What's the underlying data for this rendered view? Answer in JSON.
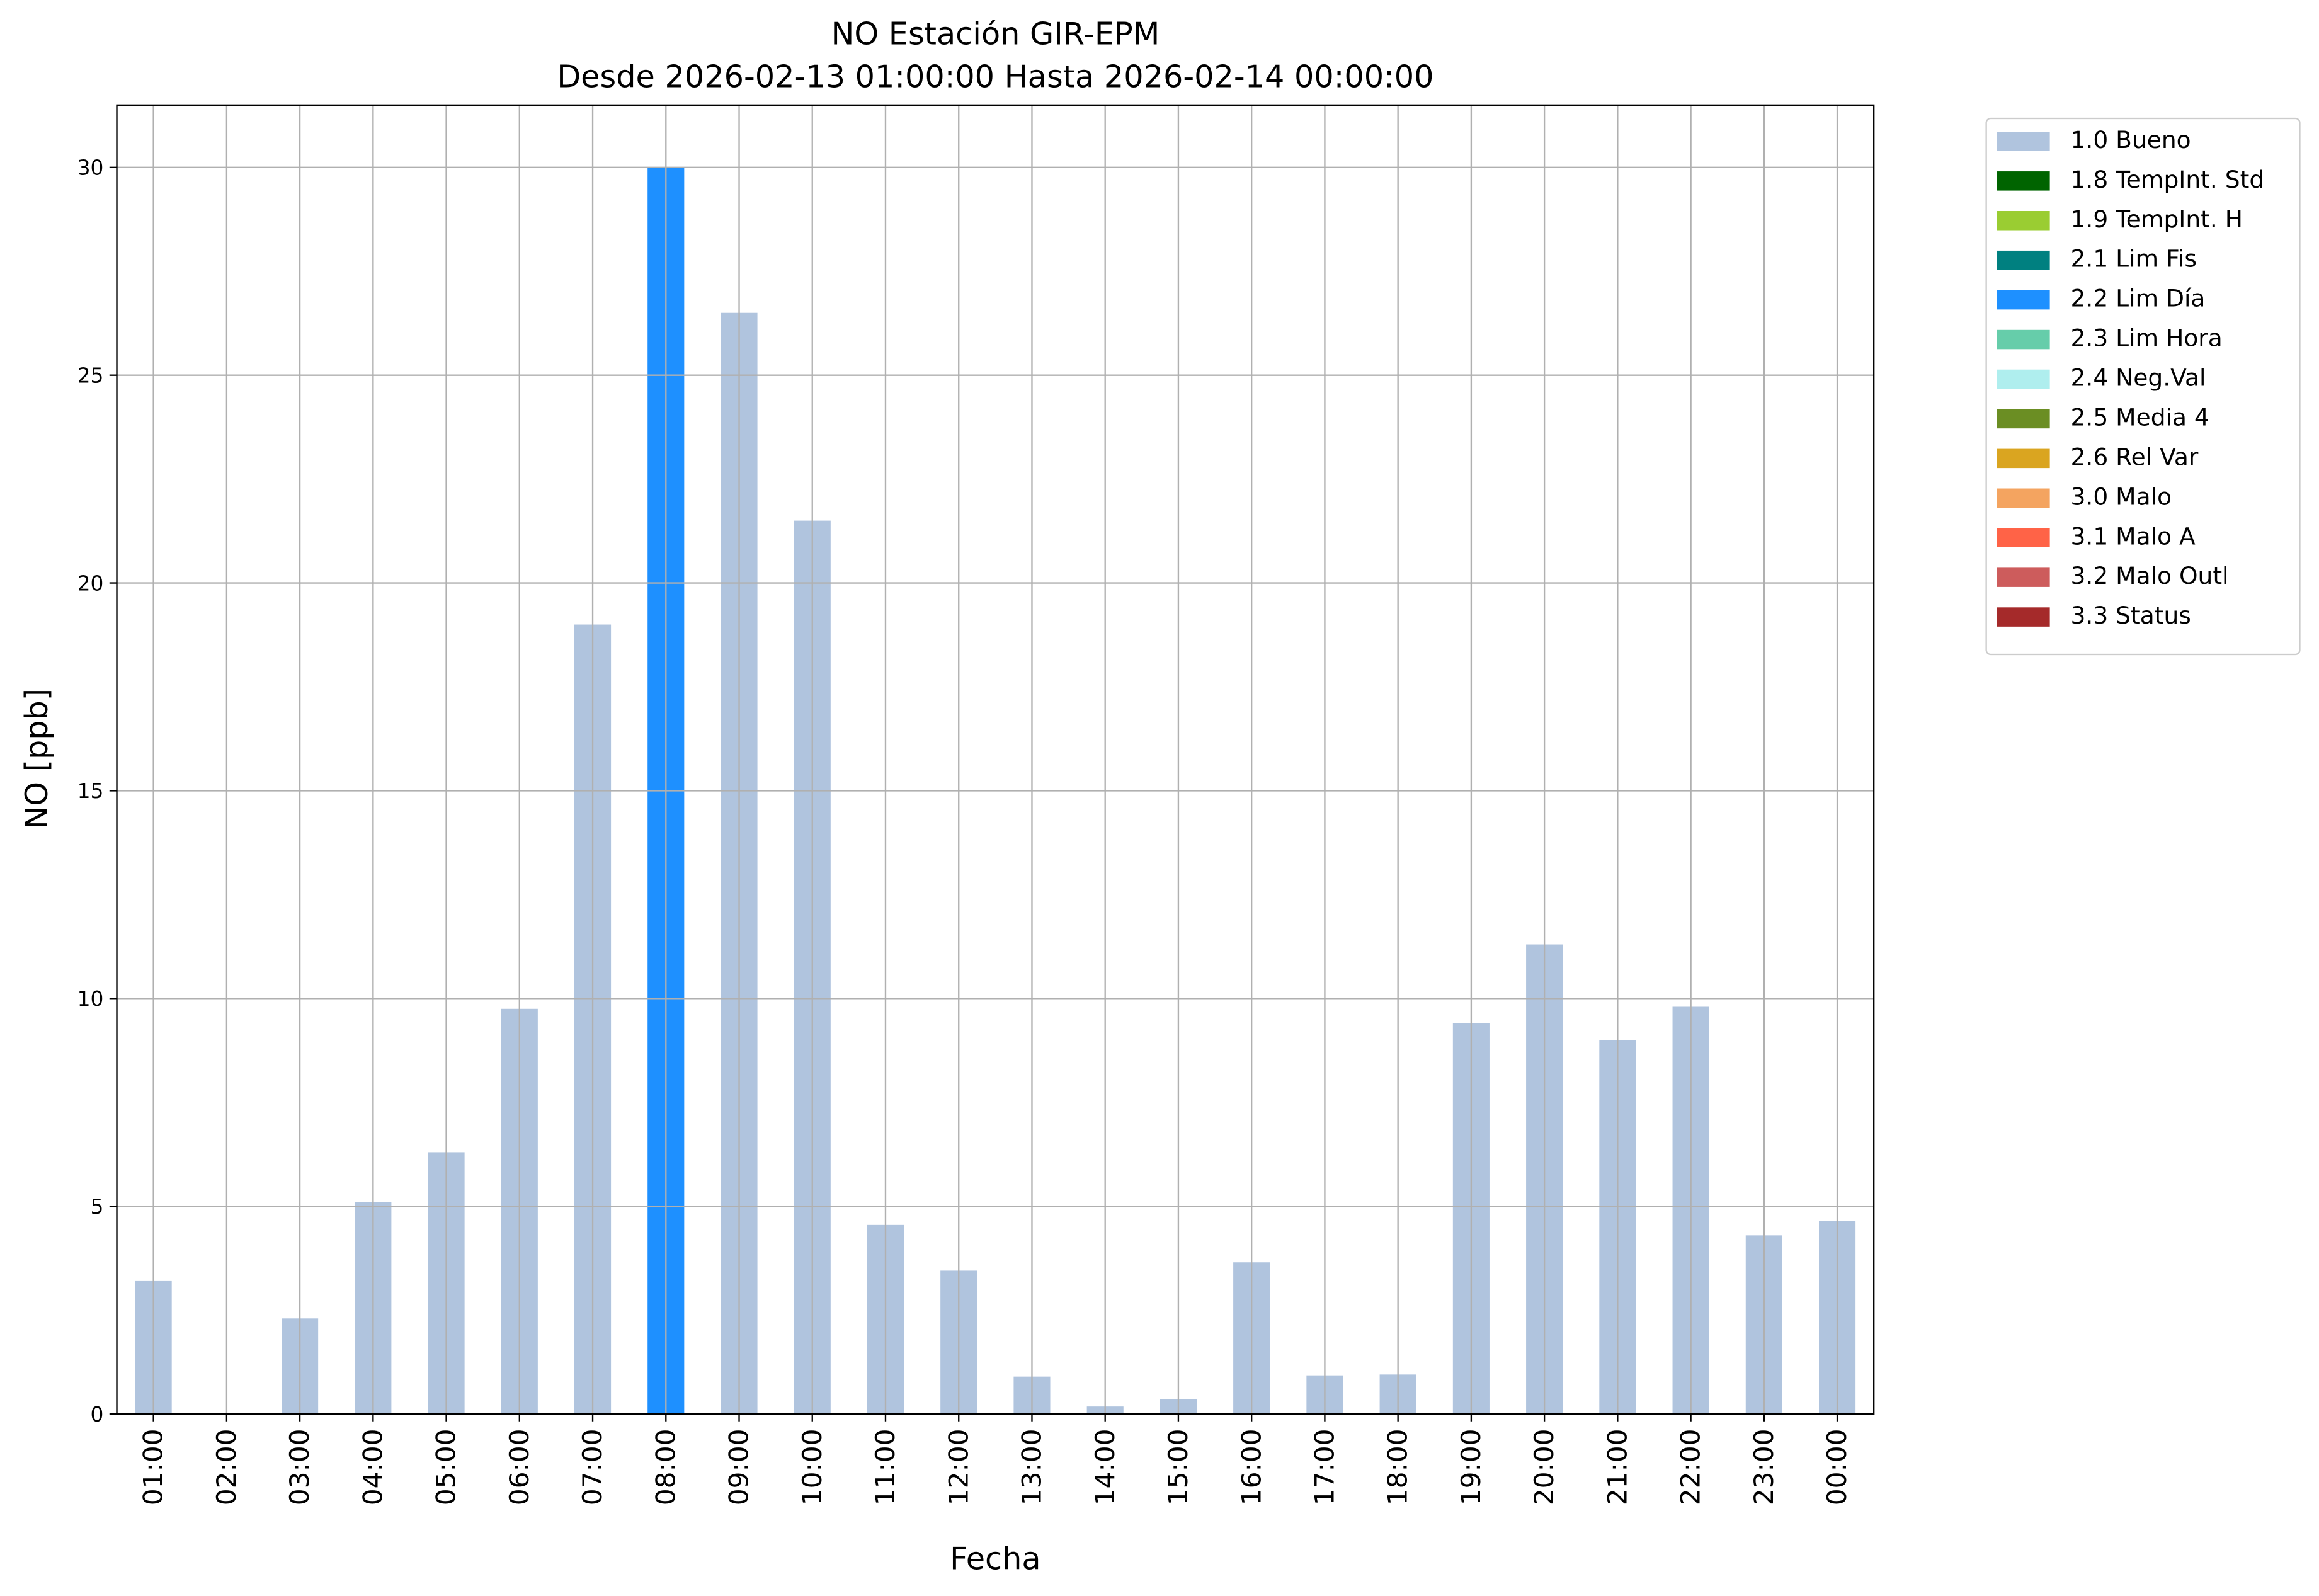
{
  "chart_data": {
    "type": "stacked_bar",
    "title": "NO Estación GIR-EPM",
    "subtitle": "Desde 2026-02-13 01:00:00 Hasta 2026-02-14 00:00:00",
    "xlabel": "Fecha",
    "ylabel": "NO [ppb]",
    "categories": [
      "01:00",
      "02:00",
      "03:00",
      "04:00",
      "05:00",
      "06:00",
      "07:00",
      "08:00",
      "09:00",
      "10:00",
      "11:00",
      "12:00",
      "13:00",
      "14:00",
      "15:00",
      "16:00",
      "17:00",
      "18:00",
      "19:00",
      "20:00",
      "21:00",
      "22:00",
      "23:00",
      "00:00"
    ],
    "series": [
      {
        "name": "1.0 Bueno",
        "color": "#b0c4de",
        "values": [
          3.2,
          null,
          2.3,
          5.1,
          6.3,
          9.75,
          19.0,
          null,
          26.5,
          21.5,
          4.55,
          3.45,
          0.9,
          0.18,
          0.35,
          3.65,
          0.93,
          0.95,
          9.4,
          11.3,
          9.0,
          9.8,
          4.3,
          4.65
        ]
      },
      {
        "name": "1.8 TempInt. Std",
        "color": "#006400",
        "values": [
          null,
          null,
          null,
          null,
          null,
          null,
          null,
          null,
          null,
          null,
          null,
          null,
          null,
          null,
          null,
          null,
          null,
          null,
          null,
          null,
          null,
          null,
          null,
          null
        ]
      },
      {
        "name": "1.9 TempInt. H",
        "color": "#9acd32",
        "values": [
          null,
          null,
          null,
          null,
          null,
          null,
          null,
          null,
          null,
          null,
          null,
          null,
          null,
          null,
          null,
          null,
          null,
          null,
          null,
          null,
          null,
          null,
          null,
          null
        ]
      },
      {
        "name": "2.1 Lim Fis",
        "color": "#008080",
        "values": [
          null,
          null,
          null,
          null,
          null,
          null,
          null,
          null,
          null,
          null,
          null,
          null,
          null,
          null,
          null,
          null,
          null,
          null,
          null,
          null,
          null,
          null,
          null,
          null
        ]
      },
      {
        "name": "2.2 Lim Día",
        "color": "#1e90ff",
        "values": [
          null,
          null,
          null,
          null,
          null,
          null,
          null,
          30,
          null,
          null,
          null,
          null,
          null,
          null,
          null,
          null,
          null,
          null,
          null,
          null,
          null,
          null,
          null,
          null
        ]
      },
      {
        "name": "2.3 Lim Hora",
        "color": "#66cdaa",
        "values": [
          null,
          null,
          null,
          null,
          null,
          null,
          null,
          null,
          null,
          null,
          null,
          null,
          null,
          null,
          null,
          null,
          null,
          null,
          null,
          null,
          null,
          null,
          null,
          null
        ]
      },
      {
        "name": "2.4 Neg.Val",
        "color": "#afeeee",
        "values": [
          null,
          null,
          null,
          null,
          null,
          null,
          null,
          null,
          null,
          null,
          null,
          null,
          null,
          null,
          null,
          null,
          null,
          null,
          null,
          null,
          null,
          null,
          null,
          null
        ]
      },
      {
        "name": "2.5 Media 4",
        "color": "#6b8e23",
        "values": [
          null,
          null,
          null,
          null,
          null,
          null,
          null,
          null,
          null,
          null,
          null,
          null,
          null,
          null,
          null,
          null,
          null,
          null,
          null,
          null,
          null,
          null,
          null,
          null
        ]
      },
      {
        "name": "2.6 Rel Var",
        "color": "#daa520",
        "values": [
          null,
          null,
          null,
          null,
          null,
          null,
          null,
          null,
          null,
          null,
          null,
          null,
          null,
          null,
          null,
          null,
          null,
          null,
          null,
          null,
          null,
          null,
          null,
          null
        ]
      },
      {
        "name": "3.0 Malo",
        "color": "#f4a460",
        "values": [
          null,
          null,
          null,
          null,
          null,
          null,
          null,
          null,
          null,
          null,
          null,
          null,
          null,
          null,
          null,
          null,
          null,
          null,
          null,
          null,
          null,
          null,
          null,
          null
        ]
      },
      {
        "name": "3.1 Malo A",
        "color": "#ff6347",
        "values": [
          null,
          null,
          null,
          null,
          null,
          null,
          null,
          null,
          null,
          null,
          null,
          null,
          null,
          null,
          null,
          null,
          null,
          null,
          null,
          null,
          null,
          null,
          null,
          null
        ]
      },
      {
        "name": "3.2 Malo Outl",
        "color": "#cd5c5c",
        "values": [
          null,
          null,
          null,
          null,
          null,
          null,
          null,
          null,
          null,
          null,
          null,
          null,
          null,
          null,
          null,
          null,
          null,
          null,
          null,
          null,
          null,
          null,
          null,
          null
        ]
      },
      {
        "name": "3.3 Status",
        "color": "#a52a2a",
        "values": [
          null,
          null,
          null,
          null,
          null,
          null,
          null,
          null,
          null,
          null,
          null,
          null,
          null,
          null,
          null,
          null,
          null,
          null,
          null,
          null,
          null,
          null,
          null,
          null
        ]
      }
    ],
    "ylim": [
      0,
      31.5
    ],
    "yticks": [
      0,
      5,
      10,
      15,
      20,
      25,
      30
    ],
    "grid": true,
    "legend": "outside-right"
  }
}
